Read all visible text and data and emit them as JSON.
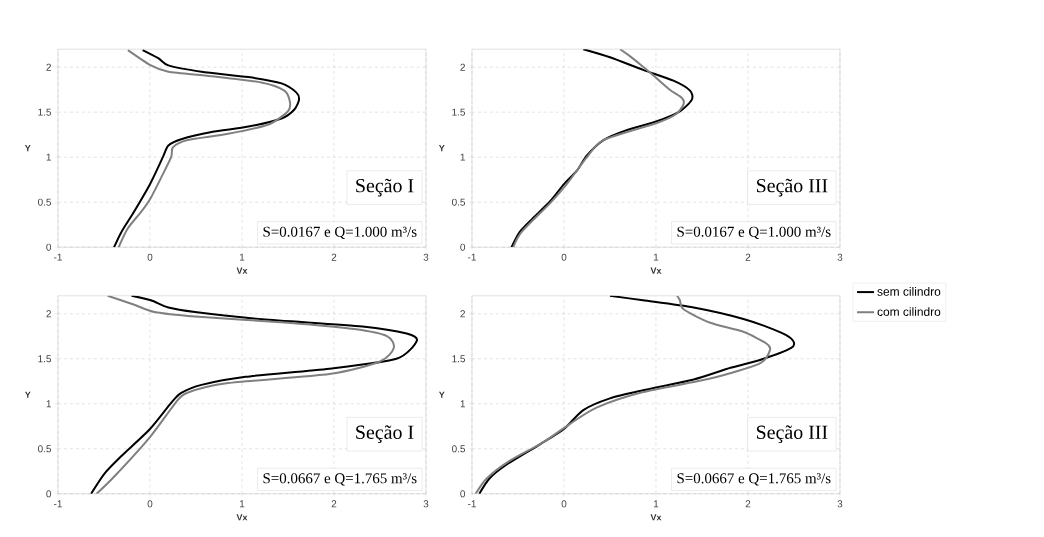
{
  "chart_data": [
    {
      "type": "line",
      "xlabel": "Vx",
      "ylabel": "Y",
      "xlim": [
        -1,
        3
      ],
      "ylim": [
        0,
        2.2
      ],
      "xticks": [
        -1,
        0,
        1,
        2,
        3
      ],
      "yticks": [
        0,
        0.5,
        1,
        1.5,
        2
      ],
      "grid": true,
      "legend": false,
      "annotations": [
        "Seção I",
        "S=0.0167 e Q=1.000 m³/s"
      ],
      "series": [
        {
          "color": "#000000",
          "x": [
            -0.39,
            -0.31,
            -0.17,
            0,
            0.14,
            0.2,
            0.34,
            0.67,
            1.07,
            1.43,
            1.57,
            1.62,
            1.59,
            1.43,
            1.07,
            0.56,
            0.2,
            0.09,
            -0.08
          ],
          "values": [
            0,
            0.17,
            0.4,
            0.7,
            1.0,
            1.13,
            1.2,
            1.28,
            1.34,
            1.43,
            1.53,
            1.64,
            1.72,
            1.82,
            1.89,
            1.95,
            2.02,
            2.1,
            2.19
          ]
        },
        {
          "color": "#808080",
          "x": [
            -0.34,
            -0.24,
            -0.09,
            0.01,
            0.12,
            0.23,
            0.25,
            0.41,
            0.85,
            1.28,
            1.5,
            1.52,
            1.46,
            1.21,
            0.67,
            0.2,
            0.01,
            -0.24
          ],
          "values": [
            0,
            0.21,
            0.4,
            0.55,
            0.77,
            1.0,
            1.11,
            1.19,
            1.26,
            1.36,
            1.51,
            1.62,
            1.74,
            1.83,
            1.9,
            1.95,
            2.02,
            2.19
          ]
        }
      ]
    },
    {
      "type": "line",
      "xlabel": "Vx",
      "ylabel": "Y",
      "xlim": [
        -1,
        3
      ],
      "ylim": [
        0,
        2.2
      ],
      "xticks": [
        -1,
        0,
        1,
        2,
        3
      ],
      "yticks": [
        0,
        0.5,
        1,
        1.5,
        2
      ],
      "grid": true,
      "legend": "right",
      "annotations": [
        "Seção III",
        "S=0.0167 e Q=1.000 m³/s"
      ],
      "series": [
        {
          "name": "sem cilindro",
          "color": "#000000",
          "x": [
            -0.57,
            -0.48,
            -0.34,
            -0.15,
            0,
            0.14,
            0.25,
            0.43,
            0.68,
            1.01,
            1.26,
            1.39,
            1.37,
            1.19,
            0.86,
            0.5,
            0.21
          ],
          "values": [
            0,
            0.17,
            0.32,
            0.51,
            0.7,
            0.85,
            1.02,
            1.19,
            1.3,
            1.4,
            1.51,
            1.64,
            1.74,
            1.85,
            1.97,
            2.11,
            2.2
          ]
        },
        {
          "name": "com cilindro",
          "color": "#808080",
          "x": [
            -0.55,
            -0.46,
            -0.15,
            0.03,
            0.25,
            0.43,
            1.01,
            1.22,
            1.3,
            1.28,
            1.15,
            0.97,
            0.83,
            0.72,
            0.61
          ],
          "values": [
            0,
            0.17,
            0.49,
            0.7,
            1.0,
            1.19,
            1.38,
            1.48,
            1.59,
            1.66,
            1.75,
            1.91,
            2.03,
            2.12,
            2.2
          ]
        }
      ]
    },
    {
      "type": "line",
      "xlabel": "Vx",
      "ylabel": "Y",
      "xlim": [
        -1,
        3
      ],
      "ylim": [
        0,
        2.2
      ],
      "xticks": [
        -1,
        0,
        1,
        2,
        3
      ],
      "yticks": [
        0,
        0.5,
        1,
        1.5,
        2
      ],
      "grid": true,
      "legend": false,
      "annotations": [
        "Seção I",
        "S=0.0667 e Q=1.765 m³/s"
      ],
      "series": [
        {
          "color": "#000000",
          "x": [
            -0.64,
            -0.49,
            -0.31,
            0,
            0.23,
            0.34,
            0.56,
            1.04,
            1.95,
            2.68,
            2.9,
            2.79,
            2.31,
            1.22,
            0.49,
            0.2,
            0.01,
            -0.2
          ],
          "values": [
            0,
            0.23,
            0.42,
            0.72,
            1.01,
            1.12,
            1.21,
            1.3,
            1.39,
            1.5,
            1.7,
            1.78,
            1.86,
            1.94,
            2.02,
            2.07,
            2.15,
            2.2
          ]
        },
        {
          "color": "#808080",
          "x": [
            -0.58,
            -0.38,
            0,
            0.27,
            0.4,
            0.85,
            1.95,
            2.5,
            2.65,
            2.58,
            2.22,
            1.5,
            0.49,
            0.05,
            -0.17,
            -0.46
          ],
          "values": [
            0,
            0.2,
            0.63,
            1.0,
            1.12,
            1.23,
            1.33,
            1.47,
            1.62,
            1.75,
            1.83,
            1.9,
            1.97,
            2.02,
            2.1,
            2.2
          ]
        }
      ]
    },
    {
      "type": "line",
      "xlabel": "Vx",
      "ylabel": "Y",
      "xlim": [
        -1,
        3
      ],
      "ylim": [
        0,
        2.2
      ],
      "xticks": [
        -1,
        0,
        1,
        2,
        3
      ],
      "yticks": [
        0,
        0.5,
        1,
        1.5,
        2
      ],
      "grid": true,
      "legend": false,
      "annotations": [
        "Seção III",
        "S=0.0667 e Q=1.765 m³/s"
      ],
      "series": [
        {
          "color": "#000000",
          "x": [
            -0.92,
            -0.81,
            -0.63,
            -0.26,
            0,
            0.21,
            0.5,
            0.86,
            1.41,
            1.81,
            2.14,
            2.47,
            2.49,
            2.36,
            1.96,
            1.41,
            0.86,
            0.5
          ],
          "values": [
            0,
            0.17,
            0.32,
            0.55,
            0.72,
            0.93,
            1.06,
            1.15,
            1.27,
            1.4,
            1.49,
            1.62,
            1.7,
            1.79,
            1.94,
            2.07,
            2.15,
            2.2
          ]
        },
        {
          "color": "#808080",
          "x": [
            -0.96,
            -0.84,
            -0.6,
            -0.23,
            0.07,
            0.36,
            0.86,
            1.59,
            2.13,
            2.24,
            2.2,
            1.95,
            1.59,
            1.3,
            1.26,
            1.23
          ],
          "values": [
            0,
            0.17,
            0.36,
            0.57,
            0.78,
            0.96,
            1.13,
            1.28,
            1.45,
            1.6,
            1.67,
            1.8,
            1.9,
            2.05,
            2.15,
            2.2
          ]
        }
      ]
    }
  ]
}
